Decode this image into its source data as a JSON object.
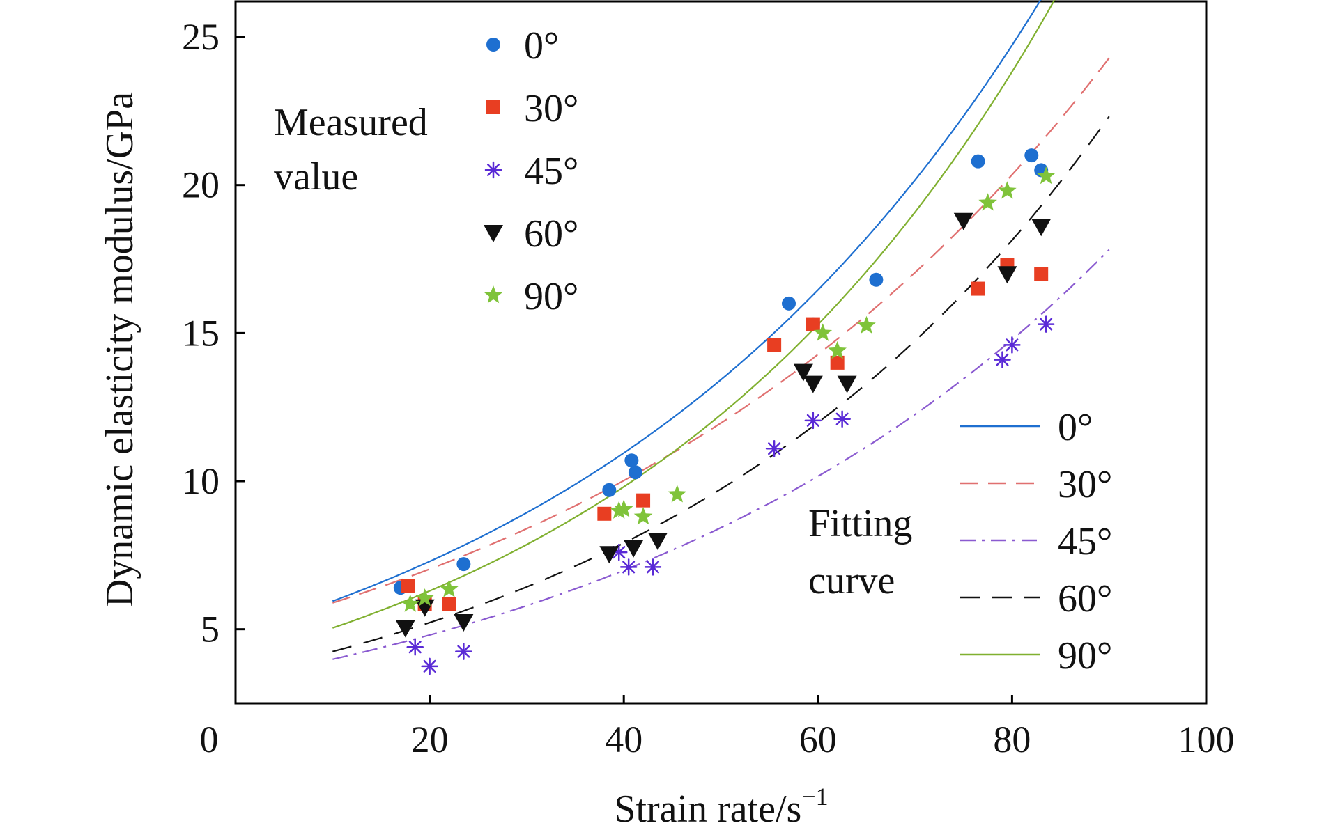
{
  "chart_data": {
    "type": "scatter",
    "xlabel": "Strain rate/s",
    "xlabel_sup": "−1",
    "ylabel": "Dynamic elasticity modulus/GPa",
    "xlim": [
      0,
      100
    ],
    "ylim": [
      2.5,
      26.2
    ],
    "xticks": [
      0,
      20,
      40,
      60,
      80,
      100
    ],
    "yticks": [
      5,
      10,
      15,
      20,
      25
    ],
    "grid": false,
    "measured_label": [
      "Measured",
      "value"
    ],
    "fitting_label": [
      "Fitting",
      "curve"
    ],
    "measured_legend_placement": "top-left",
    "fitting_legend_placement": "bottom-right",
    "series": [
      {
        "name": "0°",
        "color": "#1e6fd0",
        "marker": "circle",
        "line": "solid",
        "points": [
          [
            17,
            6.4
          ],
          [
            23.5,
            7.2
          ],
          [
            38.5,
            9.7
          ],
          [
            40.8,
            10.7
          ],
          [
            41.2,
            10.3
          ],
          [
            57,
            16.0
          ],
          [
            59.5,
            15.3
          ],
          [
            66,
            16.8
          ],
          [
            76.5,
            20.8
          ],
          [
            82,
            21.0
          ],
          [
            83,
            20.5
          ]
        ],
        "curve": {
          "a": 4.853,
          "b": 0.02035,
          "xrange": [
            10,
            90
          ]
        }
      },
      {
        "name": "30°",
        "color": "#e83e22",
        "marker": "square",
        "line": "dashed",
        "line_color": "#e07070",
        "points": [
          [
            17.8,
            6.45
          ],
          [
            19.5,
            5.85
          ],
          [
            22,
            5.85
          ],
          [
            38,
            8.9
          ],
          [
            42,
            9.35
          ],
          [
            55.5,
            14.6
          ],
          [
            59.5,
            15.3
          ],
          [
            62,
            14.0
          ],
          [
            76.5,
            16.5
          ],
          [
            79.5,
            17.3
          ],
          [
            83,
            17.0
          ]
        ],
        "curve": {
          "a": 4.934,
          "b": 0.01771,
          "xrange": [
            10,
            90
          ]
        }
      },
      {
        "name": "45°",
        "color": "#5a2ad6",
        "marker": "asterisk",
        "line": "dashdot",
        "line_color": "#8a5ad0",
        "points": [
          [
            18.5,
            4.4
          ],
          [
            20,
            3.75
          ],
          [
            23.5,
            4.25
          ],
          [
            39.5,
            7.6
          ],
          [
            40.5,
            7.1
          ],
          [
            43,
            7.1
          ],
          [
            55.5,
            11.1
          ],
          [
            59.5,
            12.05
          ],
          [
            62.5,
            12.1
          ],
          [
            79,
            14.1
          ],
          [
            80,
            14.6
          ],
          [
            83.5,
            15.3
          ]
        ],
        "curve": {
          "a": 3.305,
          "b": 0.01872,
          "xrange": [
            10,
            90
          ]
        }
      },
      {
        "name": "60°",
        "color": "#111111",
        "marker": "triangle-down",
        "line": "dashed-long",
        "points": [
          [
            17.5,
            5.05
          ],
          [
            19.5,
            5.75
          ],
          [
            23.5,
            5.25
          ],
          [
            38.5,
            7.55
          ],
          [
            41,
            7.75
          ],
          [
            43.5,
            8.0
          ],
          [
            58.5,
            13.7
          ],
          [
            59.5,
            13.3
          ],
          [
            63,
            13.3
          ],
          [
            75,
            18.8
          ],
          [
            79.5,
            17.0
          ],
          [
            83,
            18.6
          ]
        ],
        "curve": {
          "a": 3.451,
          "b": 0.02074,
          "xrange": [
            10,
            90
          ]
        }
      },
      {
        "name": "90°",
        "color": "#7fc33a",
        "marker": "star",
        "line": "solid",
        "line_color": "#80b030",
        "points": [
          [
            18,
            5.85
          ],
          [
            19.5,
            6.05
          ],
          [
            22,
            6.35
          ],
          [
            39.5,
            9.0
          ],
          [
            40,
            9.05
          ],
          [
            42,
            8.8
          ],
          [
            45.5,
            9.55
          ],
          [
            60.5,
            15.0
          ],
          [
            62,
            14.4
          ],
          [
            65,
            15.25
          ],
          [
            77.5,
            19.4
          ],
          [
            79.5,
            19.8
          ],
          [
            83.5,
            20.3
          ]
        ],
        "curve": {
          "a": 4.04,
          "b": 0.02218,
          "xrange": [
            10,
            90
          ]
        }
      }
    ]
  }
}
